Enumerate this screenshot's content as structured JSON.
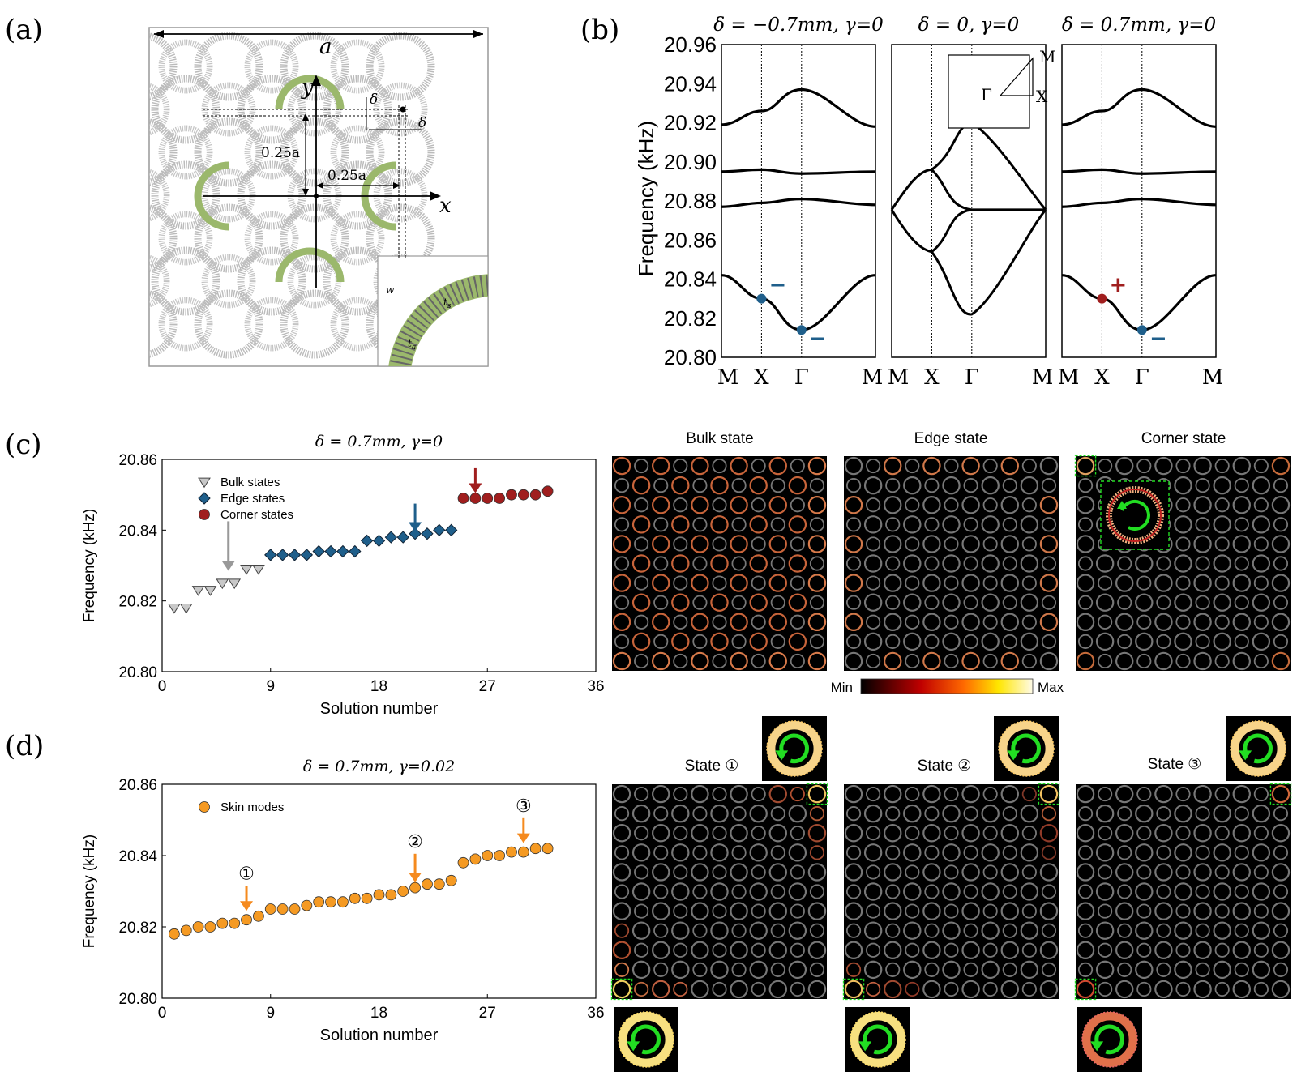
{
  "panel_labels": {
    "a": "(a)",
    "b": "(b)",
    "c": "(c)",
    "d": "(d)"
  },
  "colors": {
    "edge_blue": "#1f5f8b",
    "corner_red": "#a01e1e",
    "bulk_gray": "#c8c8c8",
    "skin_orange": "#f59a23",
    "ring_green": "#9bb86c",
    "arrow_orange": "#f58a1e",
    "mode_green": "#22dd22"
  },
  "schematic": {
    "lattice_label": "a",
    "y_label": "y",
    "x_label": "x",
    "dim_vertical": "0.25a",
    "dim_horizontal": "0.25a",
    "delta_1": "δ",
    "delta_2": "δ",
    "inset_w": "w",
    "inset_ts": "t",
    "inset_ts_sub": "s",
    "inset_ta": "t",
    "inset_ta_sub": "a"
  },
  "band_structure": {
    "ylabel": "Frequency (kHz)",
    "yticks": [
      "20.80",
      "20.82",
      "20.84",
      "20.86",
      "20.88",
      "20.90",
      "20.92",
      "20.94",
      "20.96"
    ],
    "ylim": [
      20.8,
      20.96
    ],
    "subplots": [
      {
        "title": "δ = −0.7mm, γ=0",
        "xticks": [
          "M",
          "X",
          "Γ",
          "M"
        ],
        "markers": [
          "−",
          "−"
        ]
      },
      {
        "title": "δ = 0, γ=0",
        "xticks": [
          "M",
          "X",
          "Γ",
          "M"
        ],
        "inset": {
          "M": "M",
          "G": "Γ",
          "X": "X"
        }
      },
      {
        "title": "δ = 0.7mm, γ=0",
        "xticks": [
          "M",
          "X",
          "Γ",
          "M"
        ],
        "markers": [
          "+",
          "−"
        ]
      }
    ]
  },
  "chart_data": [
    {
      "type": "scatter",
      "title": "δ = 0.7mm, γ=0",
      "xlabel": "Solution number",
      "ylabel": "Frequency (kHz)",
      "xlim": [
        0,
        36
      ],
      "ylim": [
        20.8,
        20.86
      ],
      "xticks": [
        "0",
        "9",
        "18",
        "27",
        "36"
      ],
      "yticks": [
        "20.80",
        "20.82",
        "20.84",
        "20.86"
      ],
      "legend_position": "top-left",
      "series": [
        {
          "name": "Bulk states",
          "marker": "triangle-down",
          "x": [
            1,
            2,
            3,
            4,
            5,
            6,
            7,
            8
          ],
          "y": [
            20.818,
            20.818,
            20.823,
            20.823,
            20.825,
            20.825,
            20.829,
            20.829
          ]
        },
        {
          "name": "Edge states",
          "marker": "diamond",
          "x": [
            9,
            10,
            11,
            12,
            13,
            14,
            15,
            16,
            17,
            18,
            19,
            20,
            21,
            22,
            23,
            24
          ],
          "y": [
            20.833,
            20.833,
            20.833,
            20.833,
            20.834,
            20.834,
            20.834,
            20.834,
            20.837,
            20.837,
            20.838,
            20.838,
            20.839,
            20.839,
            20.84,
            20.84
          ]
        },
        {
          "name": "Corner states",
          "marker": "circle",
          "x": [
            25,
            26,
            27,
            28,
            29,
            30,
            31,
            32
          ],
          "y": [
            20.849,
            20.849,
            20.849,
            20.849,
            20.85,
            20.85,
            20.85,
            20.851
          ]
        }
      ],
      "arrows_at": [
        5.5,
        21,
        26
      ]
    },
    {
      "type": "scatter",
      "title": "δ = 0.7mm, γ=0.02",
      "xlabel": "Solution number",
      "ylabel": "Frequency (kHz)",
      "xlim": [
        0,
        36
      ],
      "ylim": [
        20.8,
        20.86
      ],
      "xticks": [
        "0",
        "9",
        "18",
        "27",
        "36"
      ],
      "yticks": [
        "20.80",
        "20.82",
        "20.84",
        "20.86"
      ],
      "legend_position": "top-left",
      "series": [
        {
          "name": "Skin modes",
          "marker": "circle",
          "x": [
            1,
            2,
            3,
            4,
            5,
            6,
            7,
            8,
            9,
            10,
            11,
            12,
            13,
            14,
            15,
            16,
            17,
            18,
            19,
            20,
            21,
            22,
            23,
            24,
            25,
            26,
            27,
            28,
            29,
            30,
            31,
            32
          ],
          "y": [
            20.818,
            20.819,
            20.82,
            20.82,
            20.821,
            20.821,
            20.822,
            20.823,
            20.825,
            20.825,
            20.825,
            20.826,
            20.827,
            20.827,
            20.827,
            20.828,
            20.828,
            20.829,
            20.829,
            20.83,
            20.831,
            20.832,
            20.832,
            20.833,
            20.838,
            20.839,
            20.84,
            20.84,
            20.841,
            20.841,
            20.842,
            20.842
          ]
        }
      ],
      "arrows": [
        {
          "label": "①",
          "x": 7
        },
        {
          "label": "②",
          "x": 21
        },
        {
          "label": "③",
          "x": 30
        }
      ]
    }
  ],
  "field_maps": {
    "row_c_titles": [
      "Bulk state",
      "Edge state",
      "Corner state"
    ],
    "row_d_titles": [
      "State ①",
      "State ②",
      "State ③"
    ],
    "colorbar": {
      "min": "Min",
      "max": "Max"
    }
  }
}
